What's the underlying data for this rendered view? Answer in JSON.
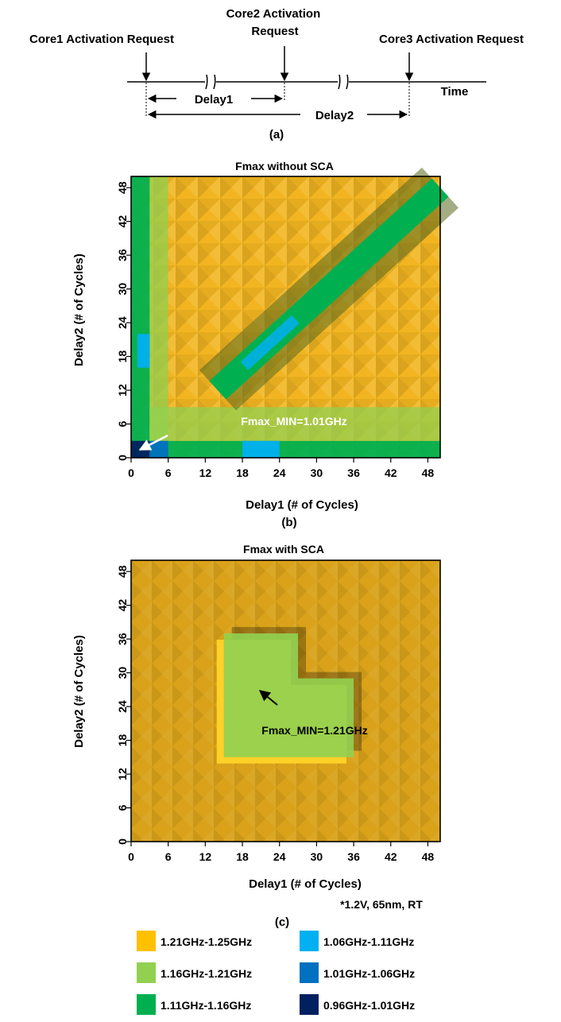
{
  "timeline": {
    "request_labels": [
      {
        "lines": [
          "Core1 Activation Request"
        ]
      },
      {
        "lines": [
          "Core2 Activation",
          "Request"
        ]
      },
      {
        "lines": [
          "Core3 Activation Request"
        ]
      }
    ],
    "time_label": "Time",
    "delay1_label": "Delay1",
    "delay2_label": "Delay2",
    "caption": "(a)"
  },
  "legend": [
    {
      "label": "1.21GHz-1.25GHz",
      "color": "#FFC000"
    },
    {
      "label": "1.06GHz-1.11GHz",
      "color": "#00B0F0"
    },
    {
      "label": "1.16GHz-1.21GHz",
      "color": "#92D050"
    },
    {
      "label": "1.01GHz-1.06GHz",
      "color": "#0070C0"
    },
    {
      "label": "1.11GHz-1.16GHz",
      "color": "#00B050"
    },
    {
      "label": "0.96GHz-1.01GHz",
      "color": "#002060"
    }
  ],
  "footnote": "*1.2V, 65nm, RT",
  "chart_data": [
    {
      "type": "heatmap",
      "title": "Fmax without SCA",
      "caption": "(b)",
      "xlabel": "Delay1 (# of Cycles)",
      "ylabel": "Delay2 (# of Cycles)",
      "xlim": [
        0,
        50
      ],
      "ylim": [
        0,
        50
      ],
      "xticks": [
        0,
        6,
        12,
        18,
        24,
        30,
        36,
        42,
        48
      ],
      "yticks": [
        0,
        6,
        12,
        18,
        24,
        30,
        36,
        42,
        48
      ],
      "annotation": "Fmax_MIN=1.01GHz",
      "annotation_point": [
        1,
        1
      ],
      "base_band": "1.21GHz-1.25GHz",
      "regions": [
        {
          "band": "1.11GHz-1.16GHz",
          "x": [
            0,
            50
          ],
          "y": [
            0,
            3
          ]
        },
        {
          "band": "1.11GHz-1.16GHz",
          "x": [
            0,
            3
          ],
          "y": [
            0,
            50
          ]
        },
        {
          "band": "1.16GHz-1.21GHz",
          "x": [
            3,
            50
          ],
          "y": [
            3,
            9
          ]
        },
        {
          "band": "1.16GHz-1.21GHz",
          "x": [
            3,
            6
          ],
          "y": [
            3,
            50
          ]
        },
        {
          "band": "1.06GHz-1.11GHz",
          "x": [
            1,
            3
          ],
          "y": [
            16,
            22
          ]
        },
        {
          "band": "1.06GHz-1.11GHz",
          "x": [
            18,
            24
          ],
          "y": [
            0,
            3
          ]
        },
        {
          "band": "0.96GHz-1.01GHz",
          "x": [
            0,
            3
          ],
          "y": [
            0,
            3
          ]
        },
        {
          "band": "1.01GHz-1.06GHz",
          "x": [
            3,
            6
          ],
          "y": [
            0,
            3
          ]
        }
      ],
      "diagonal_band": {
        "band": "1.11GHz-1.16GHz",
        "from": [
          14,
          12
        ],
        "to": [
          50,
          48
        ],
        "width": 4,
        "highlight_band": "1.06GHz-1.11GHz"
      }
    },
    {
      "type": "heatmap",
      "title": "Fmax with SCA",
      "caption": "(c)",
      "xlabel": "Delay1 (# of Cycles)",
      "ylabel": "Delay2 (# of Cycles)",
      "xlim": [
        0,
        50
      ],
      "ylim": [
        0,
        50
      ],
      "xticks": [
        0,
        6,
        12,
        18,
        24,
        30,
        36,
        42,
        48
      ],
      "yticks": [
        0,
        6,
        12,
        18,
        24,
        30,
        36,
        42,
        48
      ],
      "annotation": "Fmax_MIN=1.21GHz",
      "annotation_point": [
        20,
        27
      ],
      "base_band": "1.21GHz-1.25GHz",
      "regions": [
        {
          "band": "1.16GHz-1.21GHz",
          "polygon": [
            [
              15,
              15
            ],
            [
              36,
              15
            ],
            [
              36,
              29
            ],
            [
              27,
              29
            ],
            [
              27,
              37
            ],
            [
              15,
              37
            ]
          ]
        }
      ]
    }
  ]
}
